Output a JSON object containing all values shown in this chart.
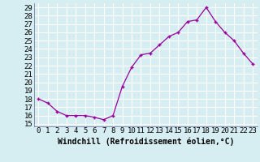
{
  "x": [
    0,
    1,
    2,
    3,
    4,
    5,
    6,
    7,
    8,
    9,
    10,
    11,
    12,
    13,
    14,
    15,
    16,
    17,
    18,
    19,
    20,
    21,
    22,
    23
  ],
  "y": [
    18.0,
    17.5,
    16.5,
    16.0,
    16.0,
    16.0,
    15.8,
    15.5,
    16.0,
    19.5,
    21.8,
    23.3,
    23.5,
    24.5,
    25.5,
    26.0,
    27.3,
    27.5,
    29.0,
    27.3,
    26.0,
    25.0,
    23.5,
    22.2
  ],
  "line_color": "#990099",
  "marker": "+",
  "xlabel": "Windchill (Refroidissement éolien,°C)",
  "xlim": [
    -0.5,
    23.5
  ],
  "ylim": [
    14.7,
    29.5
  ],
  "yticks": [
    15,
    16,
    17,
    18,
    19,
    20,
    21,
    22,
    23,
    24,
    25,
    26,
    27,
    28,
    29
  ],
  "xticks": [
    0,
    1,
    2,
    3,
    4,
    5,
    6,
    7,
    8,
    9,
    10,
    11,
    12,
    13,
    14,
    15,
    16,
    17,
    18,
    19,
    20,
    21,
    22,
    23
  ],
  "bg_color": "#d6eef2",
  "grid_color": "#aaccdd",
  "xlabel_fontsize": 7,
  "tick_fontsize": 6.5
}
